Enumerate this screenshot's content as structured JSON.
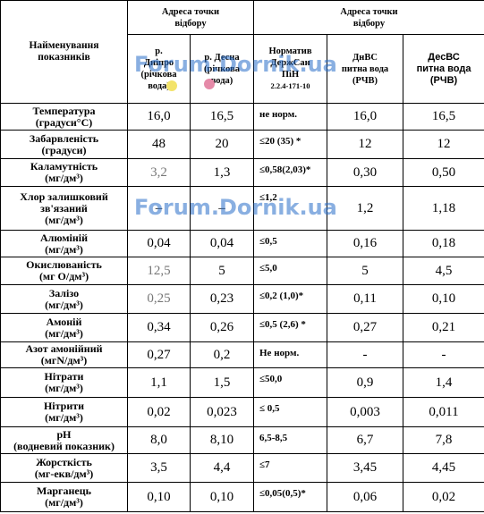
{
  "watermark": "Forum.Dornik.ua",
  "header": {
    "name_col": [
      "Найменування",
      "показників"
    ],
    "source_group": [
      "Адреса точки",
      "відбору"
    ],
    "dnipro": [
      "р.",
      "Дніпро",
      "(річкова",
      "вода)"
    ],
    "desna": [
      "р. Десна",
      "(річкова",
      "вода)"
    ],
    "station_group": [
      "Адреса точки",
      "відбору"
    ],
    "norm": [
      "Норматив",
      "ДержСан",
      "ПіН",
      "2.2.4-171-10"
    ],
    "dnvs": [
      "ДнВС",
      "питна вода",
      "(РЧВ)"
    ],
    "desvs": [
      "ДесВС",
      "питна вода",
      "(РЧВ)"
    ]
  },
  "rows": [
    {
      "name": [
        "Температура",
        "(градуси°С)"
      ],
      "dnipro": "16,0",
      "desna": "16,5",
      "norm": "не норм.",
      "dnvs": "16,0",
      "desvs": "16,5"
    },
    {
      "name": [
        "Забарвленість",
        "(градуси)"
      ],
      "dnipro": "48",
      "desna": "20",
      "norm": "≤20 (35) *",
      "dnvs": "12",
      "desvs": "12"
    },
    {
      "name": [
        "Каламутність",
        "(мг/дм³)"
      ],
      "dnipro": "3,2",
      "desna": "1,3",
      "norm": "≤0,58(2,03)*",
      "dnvs": "0,30",
      "desvs": "0,50"
    },
    {
      "name": [
        "Хлор залишковий",
        "зв'язаний",
        "(мг/дм³)"
      ],
      "dnipro": "–",
      "desna": "–",
      "norm": "≤1,2",
      "dnvs": "1,2",
      "desvs": "1,18"
    },
    {
      "name": [
        "Алюміній",
        "(мг/дм³)"
      ],
      "dnipro": "0,04",
      "desna": "0,04",
      "norm": "≤0,5",
      "dnvs": "0,16",
      "desvs": "0,18"
    },
    {
      "name": [
        "Окислюваність",
        "(мг О/дм³)"
      ],
      "dnipro": "12,5",
      "desna": "5",
      "norm": "≤5,0",
      "dnvs": "5",
      "desvs": "4,5"
    },
    {
      "name": [
        "Залізо",
        "(мг/дм³)"
      ],
      "dnipro": "0,25",
      "desna": "0,23",
      "norm": "≤0,2 (1,0)*",
      "dnvs": "0,11",
      "desvs": "0,10"
    },
    {
      "name": [
        "Амоній",
        "(мг/дм³)"
      ],
      "dnipro": "0,34",
      "desna": "0,26",
      "norm": "≤0,5 (2,6) *",
      "dnvs": "0,27",
      "desvs": "0,21"
    },
    {
      "name": [
        "Азот амонійний",
        "(мгN/дм³)"
      ],
      "dnipro": "0,27",
      "desna": "0,2",
      "norm": "Не норм.",
      "dnvs": "-",
      "desvs": "-"
    },
    {
      "name": [
        "Нітрати",
        "(мг/дм³)"
      ],
      "dnipro": "1,1",
      "desna": "1,5",
      "norm": "≤50,0",
      "dnvs": "0,9",
      "desvs": "1,4"
    },
    {
      "name": [
        "Нітрити",
        "(мг/дм³)"
      ],
      "dnipro": "0,02",
      "desna": "0,023",
      "norm": "≤ 0,5",
      "dnvs": "0,003",
      "desvs": "0,011"
    },
    {
      "name": [
        "pH",
        "(водневий показник)"
      ],
      "dnipro": "8,0",
      "desna": "8,10",
      "norm": "6,5-8,5",
      "dnvs": "6,7",
      "desvs": "7,8"
    },
    {
      "name": [
        "Жорсткість",
        "(мг-екв/дм³)"
      ],
      "dnipro": "3,5",
      "desna": "4,4",
      "norm": "≤7",
      "dnvs": "3,45",
      "desvs": "4,45"
    },
    {
      "name": [
        "Марганець",
        "(мг/дм³)"
      ],
      "dnipro": "0,10",
      "desna": "0,10",
      "norm": "≤0,05(0,5)*",
      "dnvs": "0,06",
      "desvs": "0,02"
    }
  ]
}
